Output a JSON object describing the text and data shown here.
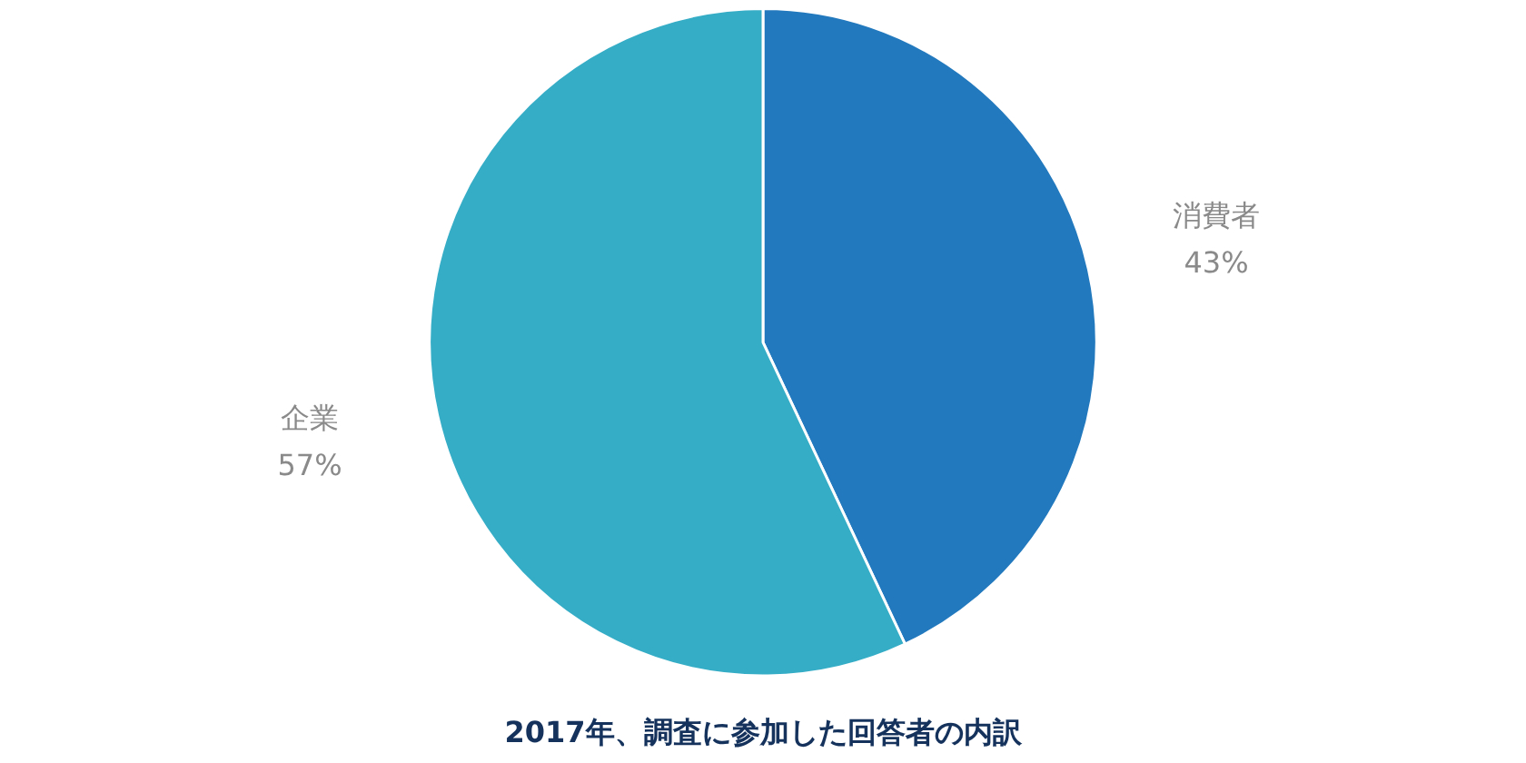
{
  "chart_data": {
    "type": "pie",
    "title": "2017年、調査に参加した回答者の内訳",
    "categories": [
      "消費者",
      "企業"
    ],
    "values": [
      43,
      57
    ],
    "colors": [
      "#2379bd",
      "#36adc7"
    ],
    "value_labels": [
      "43%",
      "57%"
    ],
    "legend": false
  }
}
